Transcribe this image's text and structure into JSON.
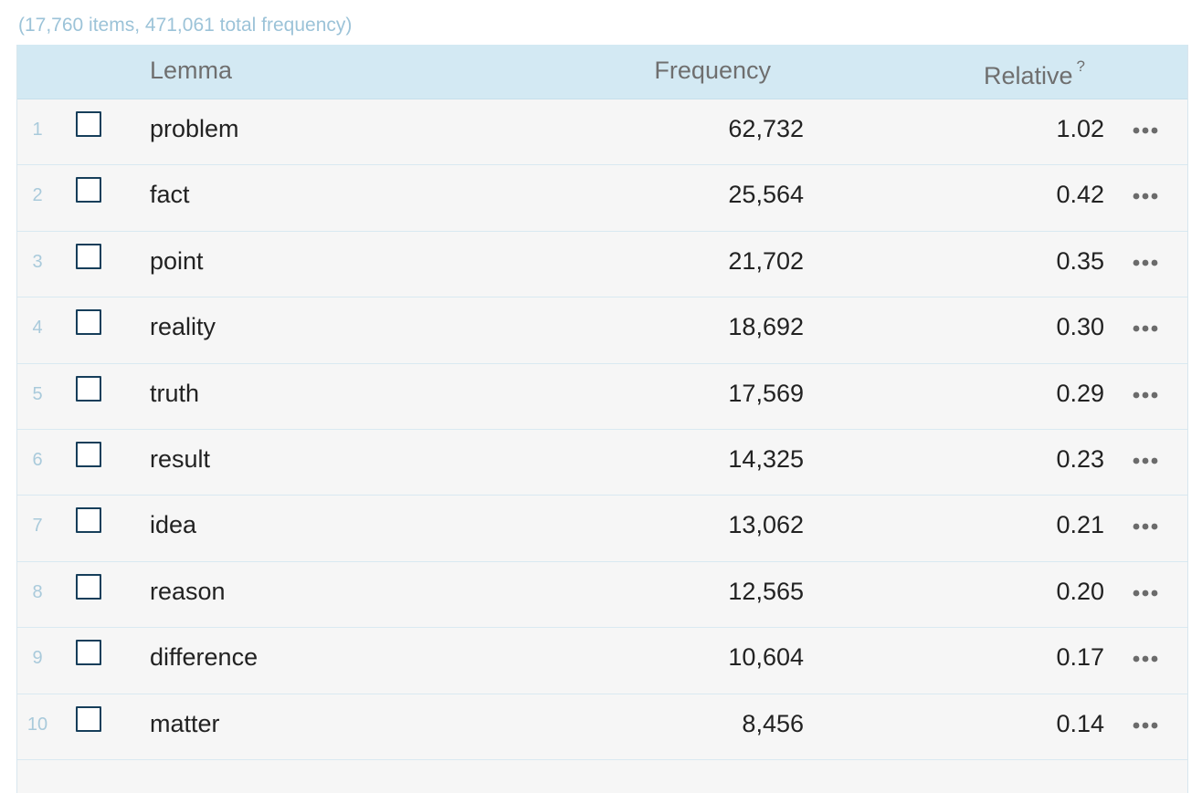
{
  "summary": "(17,760 items, 471,061 total frequency)",
  "header": {
    "lemma": "Lemma",
    "frequency": "Frequency",
    "relative": "Relative",
    "relative_help": "?"
  },
  "rows": [
    {
      "rank": "1",
      "lemma": "problem",
      "frequency": "62,732",
      "relative": "1.02"
    },
    {
      "rank": "2",
      "lemma": "fact",
      "frequency": "25,564",
      "relative": "0.42"
    },
    {
      "rank": "3",
      "lemma": "point",
      "frequency": "21,702",
      "relative": "0.35"
    },
    {
      "rank": "4",
      "lemma": "reality",
      "frequency": "18,692",
      "relative": "0.30"
    },
    {
      "rank": "5",
      "lemma": "truth",
      "frequency": "17,569",
      "relative": "0.29"
    },
    {
      "rank": "6",
      "lemma": "result",
      "frequency": "14,325",
      "relative": "0.23"
    },
    {
      "rank": "7",
      "lemma": "idea",
      "frequency": "13,062",
      "relative": "0.21"
    },
    {
      "rank": "8",
      "lemma": "reason",
      "frequency": "12,565",
      "relative": "0.20"
    },
    {
      "rank": "9",
      "lemma": "difference",
      "frequency": "10,604",
      "relative": "0.17"
    },
    {
      "rank": "10",
      "lemma": "matter",
      "frequency": "8,456",
      "relative": "0.14"
    }
  ],
  "icons": {
    "row_checkbox": "checkbox-icon",
    "row_menu": "more-options-icon"
  },
  "colors": {
    "header_bg": "#d3e9f3",
    "row_bg": "#f6f6f6",
    "muted_blue": "#9cc3d8",
    "checkbox_border": "#163e5a"
  }
}
